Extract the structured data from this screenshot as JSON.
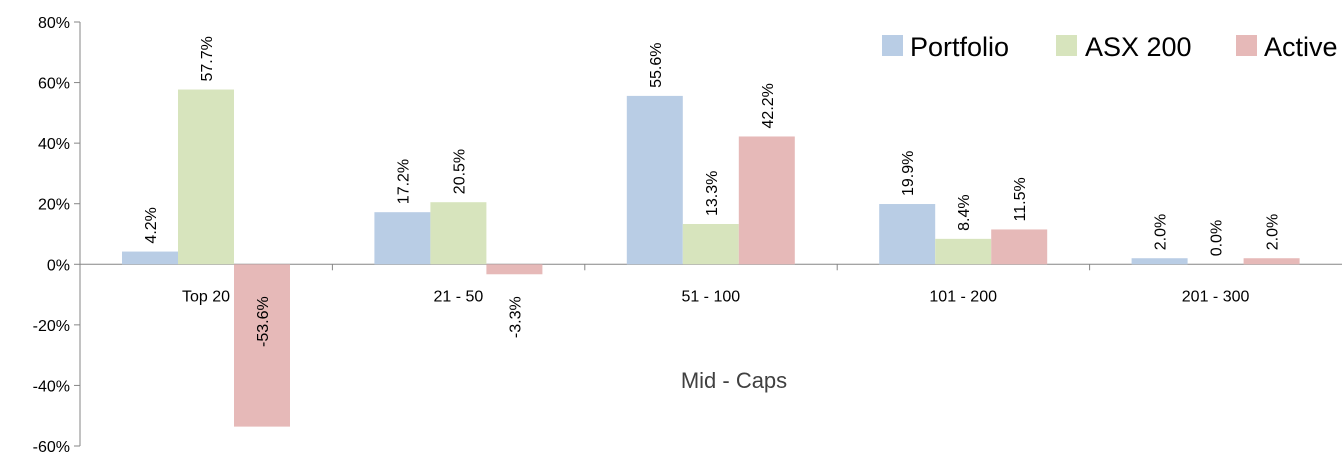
{
  "chart_data": {
    "type": "bar",
    "categories": [
      "Top 20",
      "21 - 50",
      "51 - 100",
      "101 - 200",
      "201 - 300"
    ],
    "series": [
      {
        "name": "Portfolio",
        "color": "#B9CDE5",
        "values": [
          4.2,
          17.2,
          55.6,
          19.9,
          2.0
        ],
        "labels": [
          "4.2%",
          "17.2%",
          "55.6%",
          "19.9%",
          "2.0%"
        ]
      },
      {
        "name": "ASX 200",
        "color": "#D7E4BD",
        "values": [
          57.7,
          20.5,
          13.3,
          8.4,
          0.0
        ],
        "labels": [
          "57.7%",
          "20.5%",
          "13.3%",
          "8.4%",
          "0.0%"
        ]
      },
      {
        "name": "Active",
        "color": "#E6B9B8",
        "values": [
          -53.6,
          -3.3,
          42.2,
          11.5,
          2.0
        ],
        "labels": [
          "-53.6%",
          "-3.3%",
          "42.2%",
          "11.5%",
          "2.0%"
        ]
      }
    ],
    "ylim": [
      -60,
      80
    ],
    "yticks": [
      80,
      60,
      40,
      20,
      0,
      -20,
      -40,
      -60
    ],
    "ytick_labels": [
      "80%",
      "60%",
      "40%",
      "20%",
      "0%",
      "-20%",
      "-40%",
      "-60%"
    ],
    "annotation": "Mid - Caps",
    "legend_position": "top-right",
    "grid": false
  }
}
